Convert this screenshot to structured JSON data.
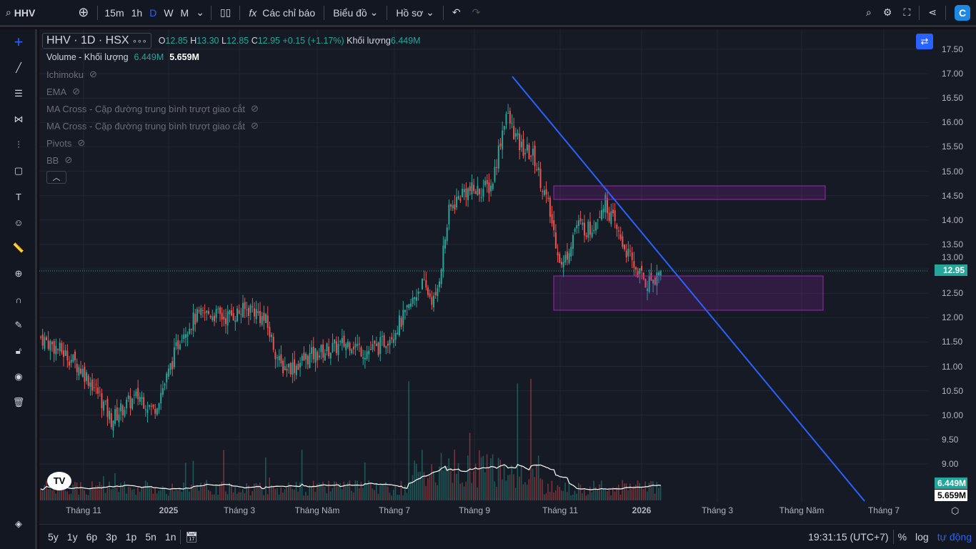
{
  "topbar": {
    "symbol": "HHV",
    "intervals": [
      "15m",
      "1h",
      "D",
      "W",
      "M"
    ],
    "active_interval": "D",
    "indicators": "Các chỉ báo",
    "chart": "Biểu đồ",
    "profile": "Hồ sơ"
  },
  "legend": {
    "title": "HHV · 1D · HSX",
    "O": "12.85",
    "H": "13.30",
    "L": "12.85",
    "C": "12.95",
    "change": "+0.15 (+1.17%)",
    "vol_label": "Khối lượng",
    "vol": "6.449M",
    "volume_line": {
      "label": "Volume - Khối lượng",
      "v1": "6.449M",
      "v2": "5.659M"
    },
    "indicators": [
      "Ichimoku",
      "EMA",
      "MA Cross - Cặp đường trung bình trượt giao cắt",
      "MA Cross - Cặp đường trung bình trượt giao cắt",
      "Pivots",
      "BB"
    ]
  },
  "price_axis": {
    "ticks": [
      "17.50",
      "17.00",
      "16.50",
      "16.00",
      "15.50",
      "15.00",
      "14.50",
      "14.00",
      "13.50",
      "13.00",
      "12.50",
      "12.00",
      "11.50",
      "11.00",
      "10.50",
      "10.00",
      "9.50",
      "9.00"
    ],
    "last": "12.95",
    "vol_last": "6.449M",
    "vol_ma": "5.659M"
  },
  "time_axis": [
    "Tháng 11",
    "2025",
    "Tháng 3",
    "Tháng Năm",
    "Tháng 7",
    "Tháng 9",
    "Tháng 11",
    "2026",
    "Tháng 3",
    "Tháng Năm",
    "Tháng 7"
  ],
  "bottom": {
    "ranges": [
      "5y",
      "1y",
      "6p",
      "3p",
      "1p",
      "5n",
      "1n"
    ],
    "clock": "19:31:15 (UTC+7)",
    "pct": "%",
    "log": "log",
    "auto": "tự động"
  },
  "chart_data": {
    "type": "candlestick",
    "closes": [
      11.6,
      11.4,
      11.2,
      10.9,
      10.5,
      9.9,
      10.2,
      10.4,
      10.1,
      10.8,
      11.7,
      12.0,
      12.1,
      12.0,
      12.1,
      12.2,
      11.9,
      11.0,
      11.0,
      11.2,
      11.3,
      11.4,
      11.5,
      11.3,
      11.4,
      11.7,
      12.1,
      12.7,
      12.3,
      14.2,
      14.6,
      14.6,
      14.7,
      16.2,
      15.5,
      15.3,
      14.3,
      13.0,
      13.9,
      13.8,
      14.4,
      13.7,
      13.1,
      12.7,
      12.95
    ],
    "ylim": [
      8.75,
      17.75
    ],
    "up_color": "#26a69a",
    "down_color": "#ef5350"
  }
}
